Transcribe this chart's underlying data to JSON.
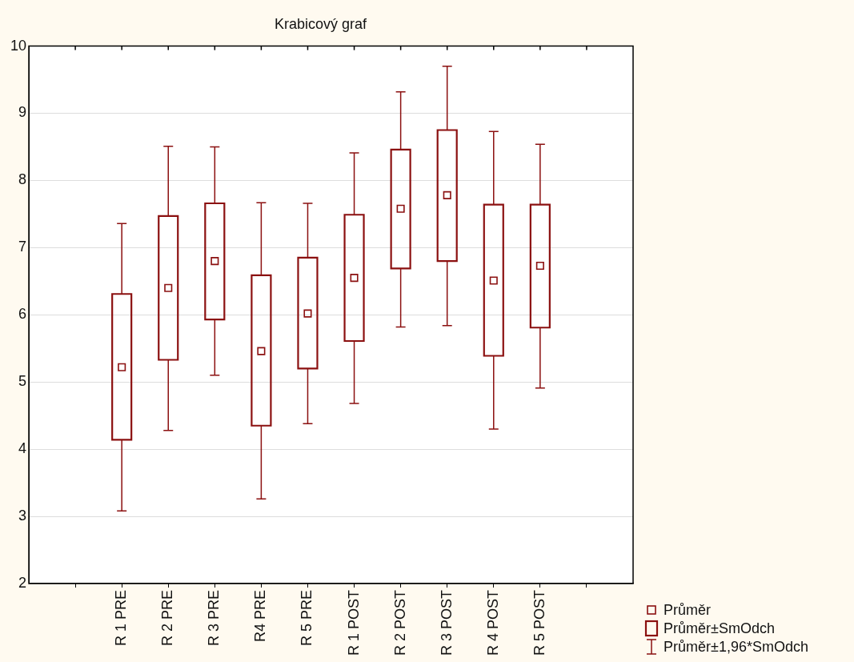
{
  "chart_data": {
    "type": "box",
    "title": "Krabicový graf",
    "categories": [
      "R 1 PRE",
      "R 2 PRE",
      "R 3 PRE",
      "R4 PRE",
      "R 5 PRE",
      "R 1 POST",
      "R 2 POST",
      "R 3 POST",
      "R 4 POST",
      "R 5 POST"
    ],
    "series": [
      {
        "color": "#8b1010",
        "boxes": [
          {
            "low": 3.08,
            "q1": 4.14,
            "median": 5.22,
            "q3": 6.31,
            "high": 7.36
          },
          {
            "low": 4.28,
            "q1": 5.33,
            "median": 6.4,
            "q3": 7.47,
            "high": 8.51
          },
          {
            "low": 5.1,
            "q1": 5.93,
            "median": 6.8,
            "q3": 7.66,
            "high": 8.5
          },
          {
            "low": 3.26,
            "q1": 4.35,
            "median": 5.46,
            "q3": 6.59,
            "high": 7.67
          },
          {
            "low": 4.38,
            "q1": 5.2,
            "median": 6.02,
            "q3": 6.85,
            "high": 7.66
          },
          {
            "low": 4.68,
            "q1": 5.61,
            "median": 6.55,
            "q3": 7.49,
            "high": 8.41
          },
          {
            "low": 5.82,
            "q1": 6.69,
            "median": 7.58,
            "q3": 8.46,
            "high": 9.32
          },
          {
            "low": 5.84,
            "q1": 6.8,
            "median": 7.78,
            "q3": 8.75,
            "high": 9.7
          },
          {
            "low": 4.3,
            "q1": 5.39,
            "median": 6.51,
            "q3": 7.64,
            "high": 8.73
          },
          {
            "low": 4.91,
            "q1": 5.81,
            "median": 6.73,
            "q3": 7.64,
            "high": 8.54
          }
        ]
      }
    ],
    "ylim": [
      2,
      10
    ],
    "yticks": [
      2,
      3,
      4,
      5,
      6,
      7,
      8,
      9,
      10
    ],
    "grid": "y",
    "marker": "square",
    "annotations": [
      "Průměr",
      "Průměr±SmOdch",
      "Průměr±1,96*SmOdch"
    ]
  }
}
